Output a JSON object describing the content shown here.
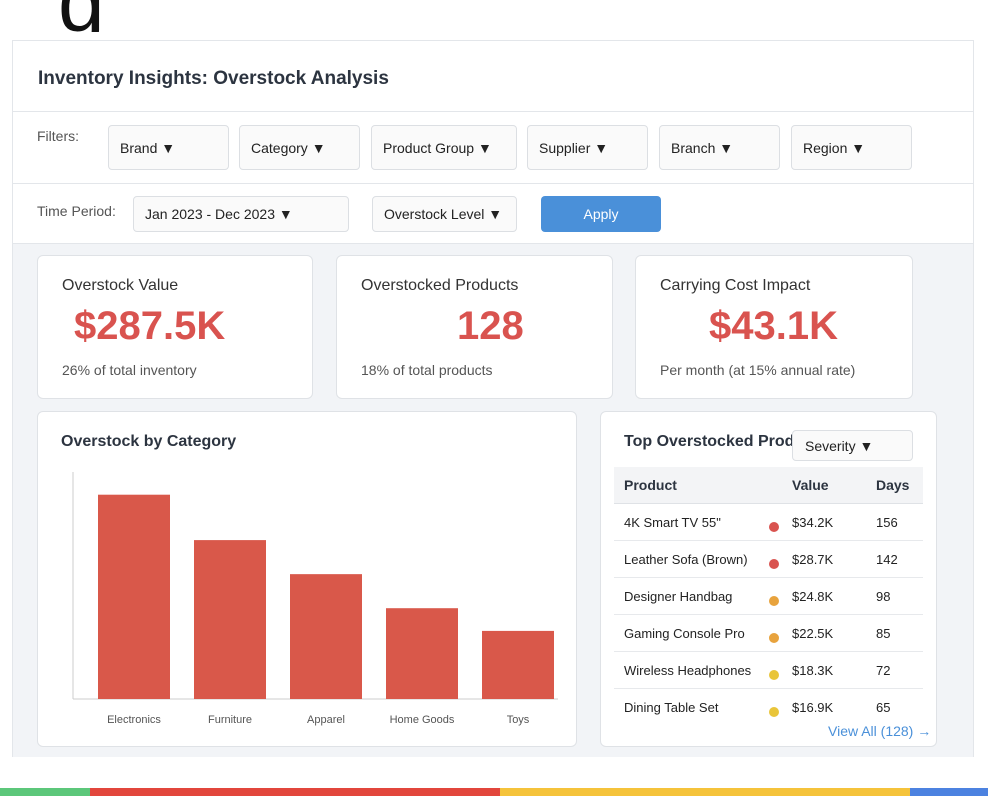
{
  "colors": {
    "accent": "#4a90d9",
    "alert_red": "#d9534f",
    "bar_red": "#d9584a",
    "severity_high": "#d9534f",
    "severity_medium": "#e8a33d",
    "severity_low": "#e9c53a",
    "band_green": "#5cc77a",
    "band_red": "#e2463c",
    "band_yellow": "#f5c33b",
    "band_blue": "#4c82e0"
  },
  "header": {
    "title": "Inventory Insights: Overstock Analysis"
  },
  "filters": {
    "label": "Filters:",
    "items": [
      {
        "label": "Brand ▼"
      },
      {
        "label": "Category ▼"
      },
      {
        "label": "Product Group ▼"
      },
      {
        "label": "Supplier ▼"
      },
      {
        "label": "Branch ▼"
      },
      {
        "label": "Region ▼"
      }
    ]
  },
  "period": {
    "label": "Time Period:",
    "range_value": "Jan 2023 - Dec 2023 ▼",
    "overstock_level": "Overstock Level ▼",
    "apply_label": "Apply"
  },
  "kpis": [
    {
      "label": "Overstock Value",
      "value": "$287.5K",
      "sub": "26% of total inventory"
    },
    {
      "label": "Overstocked Products",
      "value": "128",
      "sub": "18% of total products"
    },
    {
      "label": "Carrying Cost Impact",
      "value": "$43.1K",
      "sub": "Per month (at 15% annual rate)"
    }
  ],
  "chart_data": {
    "type": "bar",
    "title": "Overstock by Category",
    "categories": [
      "Electronics",
      "Furniture",
      "Apparel",
      "Home Goods",
      "Toys"
    ],
    "values": [
      90,
      70,
      55,
      40,
      30
    ],
    "ylim": [
      0,
      100
    ],
    "xlabel": "",
    "ylabel": "",
    "grid": false
  },
  "top_products": {
    "title": "Top Overstocked Products",
    "severity_label": "Severity ▼",
    "headers": {
      "product": "Product",
      "value": "Value",
      "days": "Days"
    },
    "rows": [
      {
        "product": "4K Smart TV 55\"",
        "severity": "high",
        "value": "$34.2K",
        "days": "156"
      },
      {
        "product": "Leather Sofa (Brown)",
        "severity": "high",
        "value": "$28.7K",
        "days": "142"
      },
      {
        "product": "Designer Handbag",
        "severity": "medium",
        "value": "$24.8K",
        "days": "98"
      },
      {
        "product": "Gaming Console Pro",
        "severity": "medium",
        "value": "$22.5K",
        "days": "85"
      },
      {
        "product": "Wireless Headphones",
        "severity": "low",
        "value": "$18.3K",
        "days": "72"
      },
      {
        "product": "Dining Table Set",
        "severity": "low",
        "value": "$16.9K",
        "days": "65"
      }
    ],
    "view_all": "View All (128) →"
  }
}
